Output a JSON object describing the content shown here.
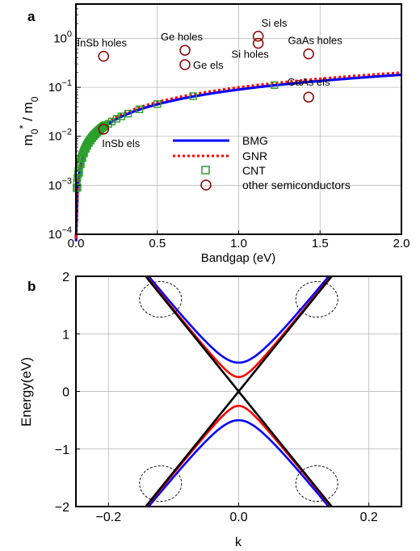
{
  "chart_data": [
    {
      "panel_label": "a",
      "type": "line",
      "xlabel": "Bandgap (eV)",
      "ylabel": "m0* / m0",
      "xlim": [
        0,
        2.0
      ],
      "ylim": [
        0.0001,
        5
      ],
      "yscale": "log",
      "x_ticks": [
        "0.0",
        "0.5",
        "1.0",
        "1.5",
        "2.0"
      ],
      "y_ticks": [
        {
          "base": "10",
          "exp": "0"
        },
        {
          "base": "10",
          "exp": "−1"
        },
        {
          "base": "10",
          "exp": "−2"
        },
        {
          "base": "10",
          "exp": "−3"
        },
        {
          "base": "10",
          "exp": "−4"
        }
      ],
      "grid": true,
      "legend_position": "lower-right",
      "colors": {
        "BMG": "#0000ff",
        "GNR": "#ff0000",
        "CNT": "#2ca02c",
        "other": "#8b0000"
      },
      "series": [
        {
          "name": "BMG",
          "style": "solid",
          "x": [
            0.002,
            0.005,
            0.01,
            0.02,
            0.05,
            0.1,
            0.2,
            0.3,
            0.5,
            0.75,
            1.0,
            1.25,
            1.5,
            1.75,
            2.0
          ],
          "y": [
            0.00018,
            0.00045,
            0.0009,
            0.0018,
            0.0045,
            0.009,
            0.018,
            0.027,
            0.045,
            0.068,
            0.09,
            0.113,
            0.135,
            0.158,
            0.18
          ]
        },
        {
          "name": "GNR",
          "style": "dotted",
          "x": [
            0.002,
            0.005,
            0.01,
            0.02,
            0.05,
            0.1,
            0.2,
            0.3,
            0.5,
            0.75,
            1.0,
            1.25,
            1.5,
            1.75,
            2.0
          ],
          "y": [
            0.0002,
            0.0005,
            0.001,
            0.002,
            0.005,
            0.01,
            0.02,
            0.03,
            0.05,
            0.076,
            0.1,
            0.125,
            0.15,
            0.175,
            0.2
          ]
        },
        {
          "name": "CNT",
          "style": "square-markers",
          "x": [
            0.01,
            0.02,
            0.03,
            0.04,
            0.05,
            0.06,
            0.07,
            0.08,
            0.09,
            0.1,
            0.11,
            0.12,
            0.13,
            0.14,
            0.15,
            0.16,
            0.17,
            0.18,
            0.2,
            0.22,
            0.25,
            0.28,
            0.32,
            0.39,
            0.5,
            0.72,
            1.22
          ],
          "y": [
            0.0009,
            0.0018,
            0.0027,
            0.0036,
            0.0045,
            0.0055,
            0.0064,
            0.0073,
            0.0082,
            0.0091,
            0.01,
            0.0109,
            0.0118,
            0.0127,
            0.0137,
            0.0146,
            0.0155,
            0.0164,
            0.018,
            0.02,
            0.0228,
            0.0255,
            0.029,
            0.0355,
            0.0455,
            0.066,
            0.111
          ]
        },
        {
          "name": "other semiconductors",
          "style": "circle-markers",
          "x": [
            0.17,
            0.17,
            0.67,
            0.67,
            1.12,
            1.12,
            1.43,
            1.43
          ],
          "y": [
            0.43,
            0.014,
            0.57,
            0.29,
            1.1,
            0.79,
            0.48,
            0.063
          ]
        }
      ],
      "annotations": [
        {
          "text": "InSb holes",
          "x": 0.17,
          "y": 0.43
        },
        {
          "text": "InSb els",
          "x": 0.17,
          "y": 0.014
        },
        {
          "text": "Ge holes",
          "x": 0.67,
          "y": 0.57
        },
        {
          "text": "Ge els",
          "x": 0.67,
          "y": 0.29
        },
        {
          "text": "Si els",
          "x": 1.12,
          "y": 1.1
        },
        {
          "text": "Si holes",
          "x": 1.12,
          "y": 0.79
        },
        {
          "text": "GaAs holes",
          "x": 1.43,
          "y": 0.48
        },
        {
          "text": "GaAs els",
          "x": 1.43,
          "y": 0.063
        }
      ]
    },
    {
      "panel_label": "b",
      "type": "line",
      "xlabel": "k",
      "ylabel": "Energy(eV)",
      "xlim": [
        -0.25,
        0.25
      ],
      "ylim": [
        -2,
        2
      ],
      "x_ticks": [
        "−0.2",
        "0.0",
        "0.2"
      ],
      "y_ticks": [
        "2",
        "1",
        "0",
        "−1",
        "−2"
      ],
      "grid": true,
      "colors": {
        "gap_0.5": "#0000ff",
        "gap_0.25": "#ff0000",
        "gapless": "#000000",
        "ellipses": "#000000"
      },
      "series": [
        {
          "gap_half_eV": 0.5,
          "color": "blue",
          "relation": "E = ±sqrt(gap² + (14k)²)"
        },
        {
          "gap_half_eV": 0.25,
          "color": "red",
          "relation": "E = ±sqrt(gap² + (14k)²)"
        },
        {
          "gap_half_eV": 0.0,
          "color": "black",
          "relation": "E = ±14|k|"
        }
      ],
      "ellipses": [
        {
          "kx": -0.12,
          "E": 1.6
        },
        {
          "kx": 0.12,
          "E": 1.6
        },
        {
          "kx": -0.12,
          "E": -1.6
        },
        {
          "kx": 0.12,
          "E": -1.6
        }
      ]
    }
  ],
  "legend": {
    "bmg": "BMG",
    "gnr": "GNR",
    "cnt": "CNT",
    "other": "other semiconductors"
  }
}
